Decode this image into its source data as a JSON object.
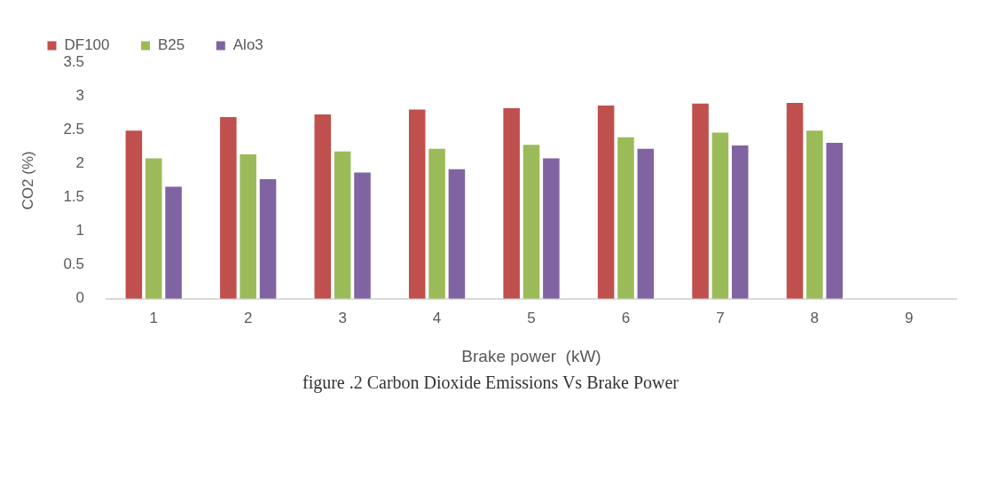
{
  "chart_data": {
    "type": "bar",
    "xlabel": "Brake power  (kW)",
    "ylabel": "CO2 (%)",
    "categories": [
      "1",
      "2",
      "3",
      "4",
      "5",
      "6",
      "7",
      "8",
      "9"
    ],
    "series": [
      {
        "name": "DF100",
        "color": "#c0504d",
        "values": [
          2.5,
          2.7,
          2.74,
          2.81,
          2.83,
          2.87,
          2.9,
          2.91,
          null
        ]
      },
      {
        "name": "B25",
        "color": "#9bbb59",
        "values": [
          2.09,
          2.15,
          2.19,
          2.23,
          2.29,
          2.4,
          2.47,
          2.5,
          null
        ]
      },
      {
        "name": "Alo3",
        "color": "#8064a2",
        "values": [
          1.67,
          1.78,
          1.88,
          1.93,
          2.09,
          2.23,
          2.28,
          2.32,
          null
        ]
      }
    ],
    "ylim": [
      0,
      3.5
    ],
    "yticks": [
      0,
      0.5,
      1,
      1.5,
      2,
      2.5,
      3,
      3.5
    ],
    "grid": false,
    "legend": "top",
    "annotations": [
      "figure .2  Carbon Dioxide Emissions  Vs Brake Power"
    ]
  }
}
